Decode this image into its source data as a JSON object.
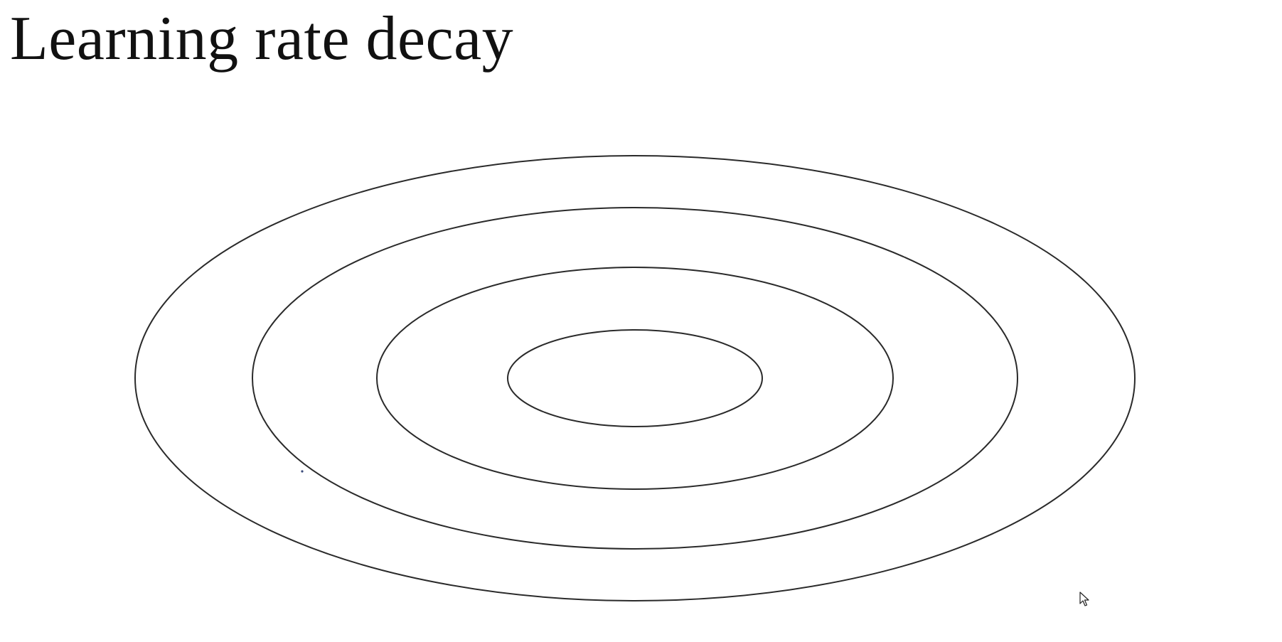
{
  "slide": {
    "title": "Learning rate decay"
  },
  "diagram": {
    "contours": [
      {
        "name": "outer"
      },
      {
        "name": "third"
      },
      {
        "name": "second"
      },
      {
        "name": "inner"
      }
    ],
    "stroke_color": "#2a2a2a"
  },
  "cursor": {
    "icon": "mouse-pointer-icon"
  }
}
